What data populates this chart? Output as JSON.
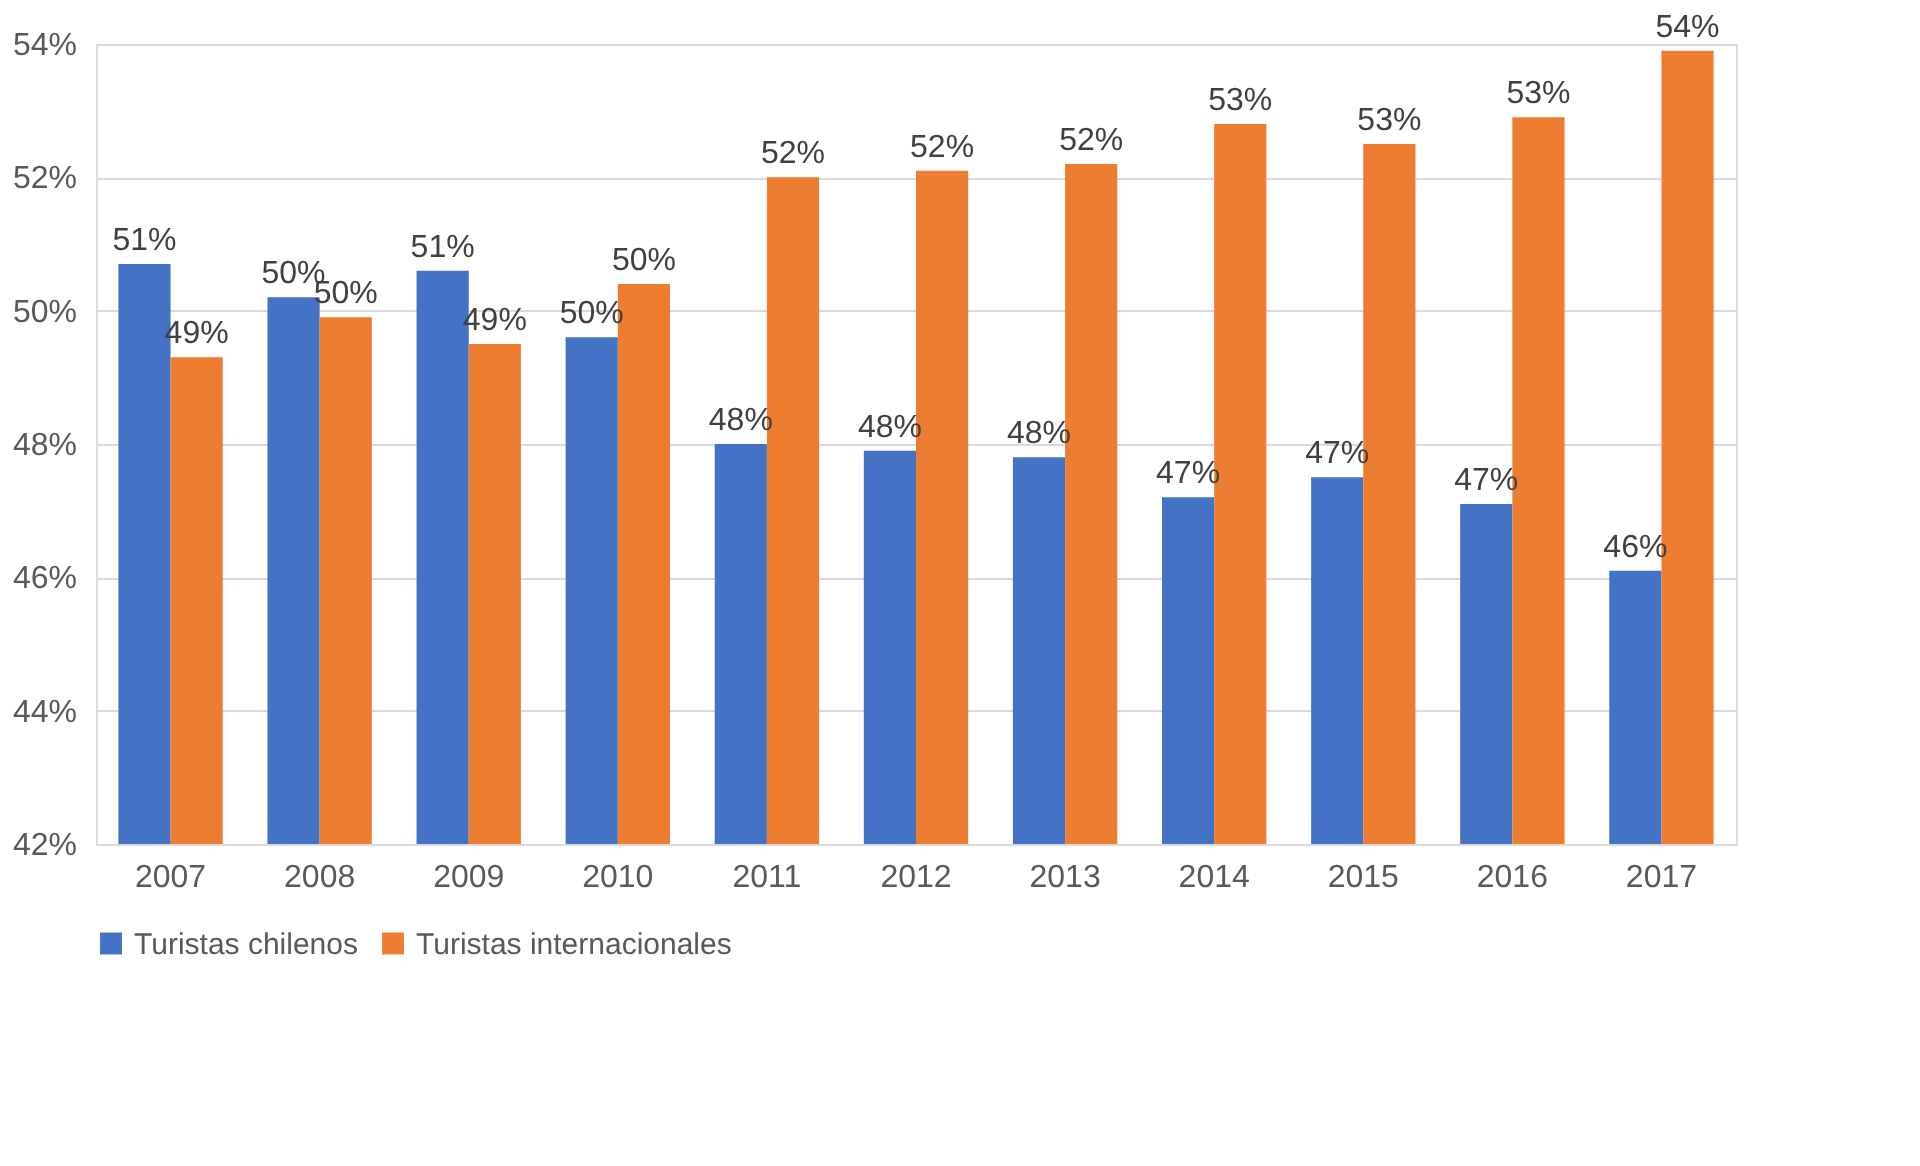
{
  "chart_data": {
    "type": "bar",
    "categories": [
      "2007",
      "2008",
      "2009",
      "2010",
      "2011",
      "2012",
      "2013",
      "2014",
      "2015",
      "2016",
      "2017"
    ],
    "series": [
      {
        "name": "Turistas chilenos",
        "color": "#4472c4",
        "values": [
          50.7,
          50.2,
          50.6,
          49.6,
          48.0,
          47.9,
          47.8,
          47.2,
          47.5,
          47.1,
          46.1
        ],
        "value_labels": [
          "51%",
          "50%",
          "51%",
          "50%",
          "48%",
          "48%",
          "48%",
          "47%",
          "47%",
          "47%",
          "46%"
        ]
      },
      {
        "name": "Turistas internacionales",
        "color": "#ed7d31",
        "values": [
          49.3,
          49.9,
          49.5,
          50.4,
          52.0,
          52.1,
          52.2,
          52.8,
          52.5,
          52.9,
          53.9
        ],
        "value_labels": [
          "49%",
          "50%",
          "49%",
          "50%",
          "52%",
          "52%",
          "52%",
          "53%",
          "53%",
          "53%",
          "54%"
        ]
      }
    ],
    "ylim": [
      42,
      54
    ],
    "yticks": [
      {
        "value": 42,
        "label": "42%"
      },
      {
        "value": 44,
        "label": "44%"
      },
      {
        "value": 46,
        "label": "46%"
      },
      {
        "value": 48,
        "label": "48%"
      },
      {
        "value": 50,
        "label": "50%"
      },
      {
        "value": 52,
        "label": "52%"
      },
      {
        "value": 54,
        "label": "54%"
      }
    ],
    "grid": "y",
    "legend": "bottom"
  }
}
